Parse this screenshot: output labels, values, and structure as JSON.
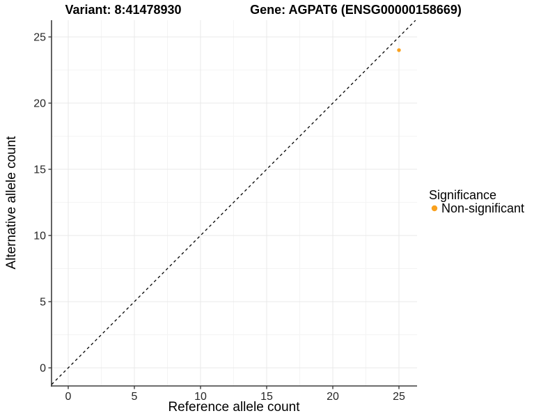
{
  "chart_data": {
    "type": "scatter",
    "title_left": "Variant: 8:41478930",
    "title_right": "Gene: AGPAT6 (ENSG00000158669)",
    "xlabel": "Reference allele count",
    "ylabel": "Alternative allele count",
    "xlim": [
      -1.25,
      26.25
    ],
    "ylim": [
      -1.25,
      26.25
    ],
    "xticks": [
      0,
      5,
      10,
      15,
      20,
      25
    ],
    "yticks": [
      0,
      5,
      10,
      15,
      20,
      25
    ],
    "minor_ticks": [
      2.5,
      7.5,
      12.5,
      17.5,
      22.5
    ],
    "grid": "major and minor gridlines, light gray on white",
    "reference_line": {
      "type": "identity",
      "slope": 1,
      "intercept": 0,
      "style": "dashed",
      "color": "#000000"
    },
    "series": [
      {
        "name": "Non-significant",
        "color": "#F9A11E",
        "points": [
          {
            "x": 25,
            "y": 24
          }
        ]
      }
    ],
    "legend": {
      "title": "Significance",
      "position": "right",
      "entries": [
        {
          "label": "Non-significant",
          "color": "#F9A11E"
        }
      ]
    }
  },
  "style_colors": {
    "axis_line": "#3c3c3c",
    "major_grid": "#e9e9e9",
    "minor_grid": "#f4f4f4",
    "point_orange": "#F9A11E"
  }
}
